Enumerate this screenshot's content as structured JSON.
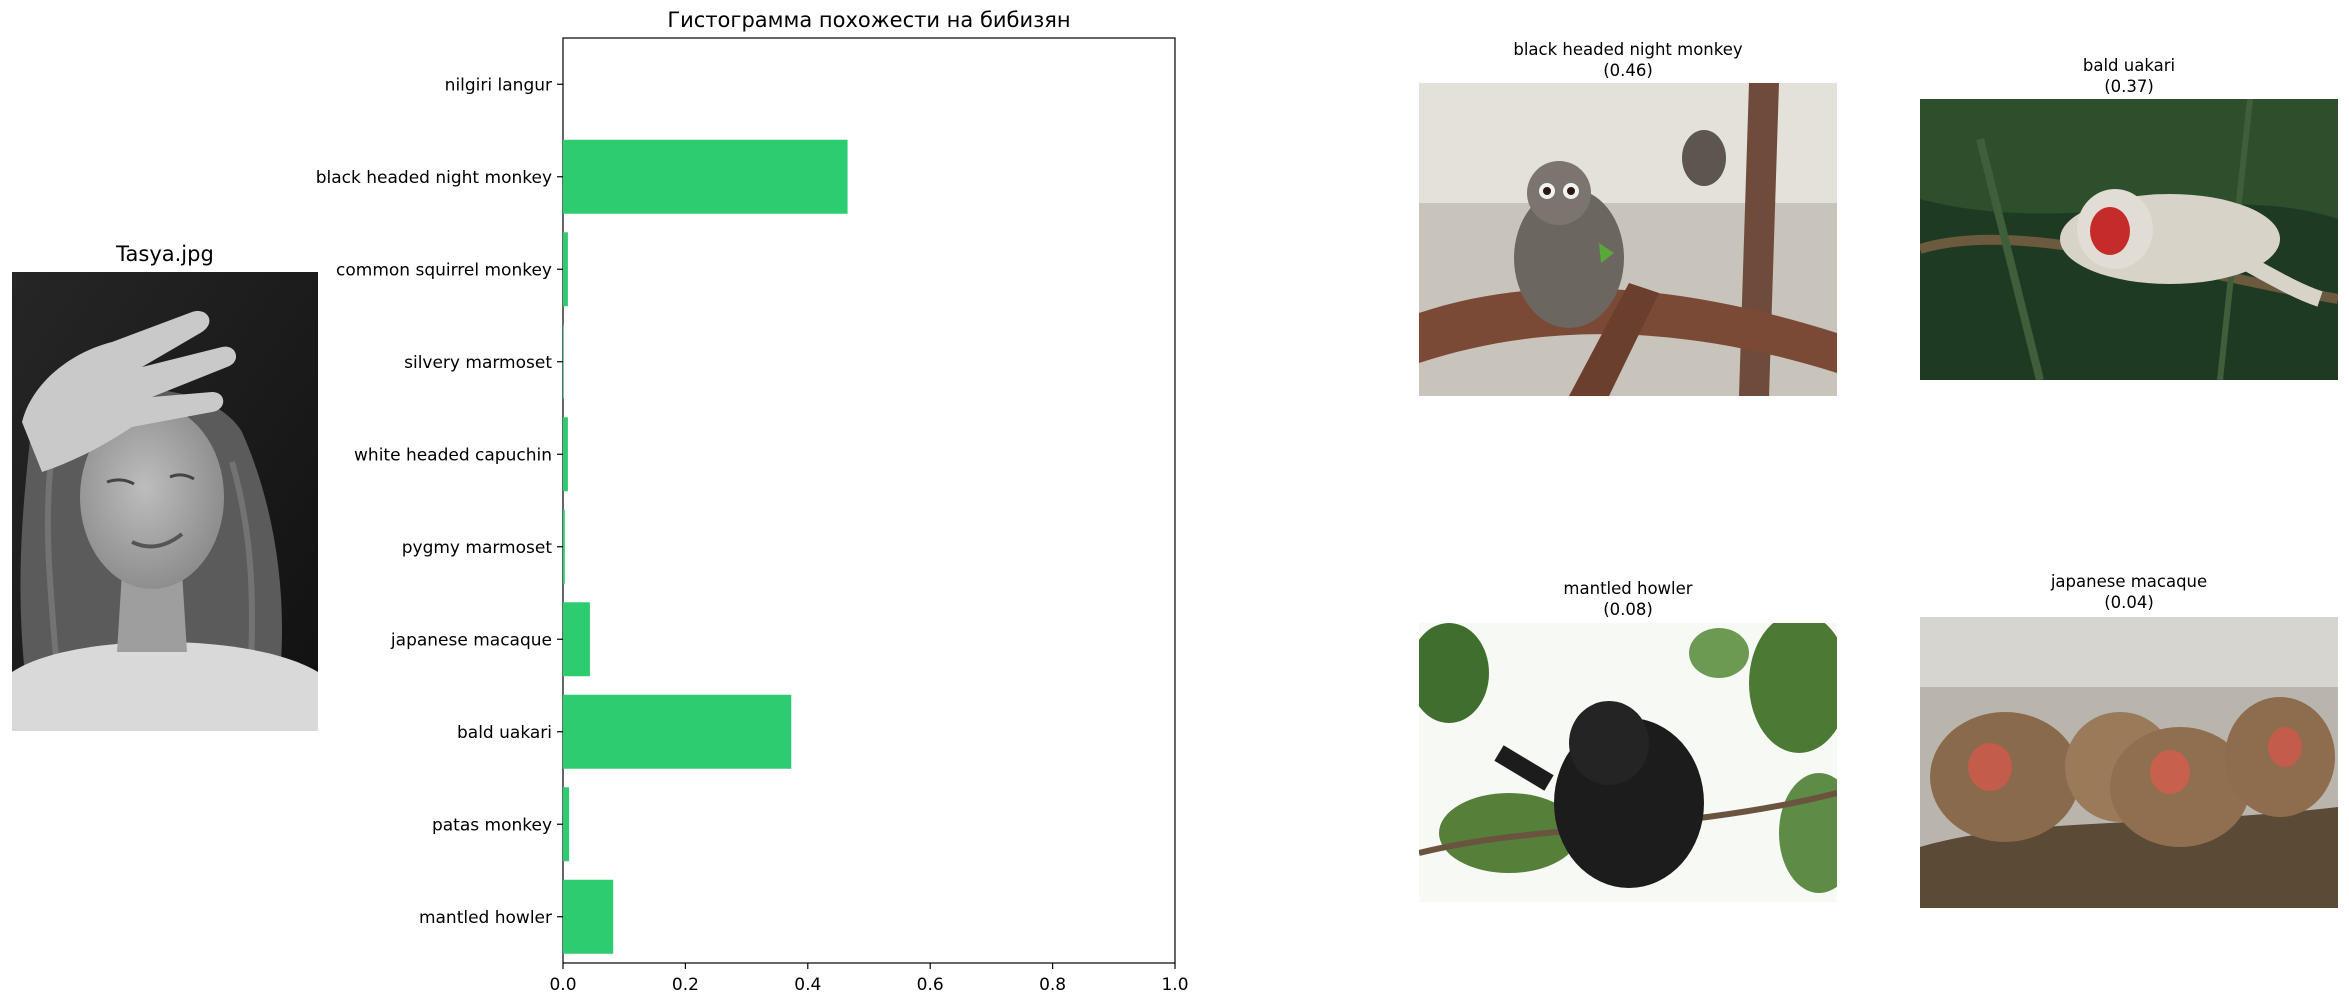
{
  "photo": {
    "title": "Tasya.jpg"
  },
  "chart_data": {
    "type": "bar",
    "orientation": "horizontal",
    "title": "Гистограмма похожести на бибизян",
    "xlabel": "",
    "ylabel": "",
    "xlim": [
      0,
      1.0
    ],
    "x_ticks": [
      "0.0",
      "0.2",
      "0.4",
      "0.6",
      "0.8",
      "1.0"
    ],
    "categories": [
      "nilgiri langur",
      "black headed night monkey",
      "common squirrel monkey",
      "silvery marmoset",
      "white headed capuchin",
      "pygmy marmoset",
      "japanese macaque",
      "bald uakari",
      "patas monkey",
      "mantled howler"
    ],
    "values": [
      0.0,
      0.465,
      0.008,
      0.001,
      0.008,
      0.003,
      0.044,
      0.373,
      0.01,
      0.082
    ],
    "color": "#2ecc71",
    "grid": false
  },
  "matches": [
    {
      "name": "black headed night monkey",
      "score": "(0.46)"
    },
    {
      "name": "bald uakari",
      "score": "(0.37)"
    },
    {
      "name": "mantled howler",
      "score": "(0.08)"
    },
    {
      "name": "japanese macaque",
      "score": "(0.04)"
    }
  ]
}
